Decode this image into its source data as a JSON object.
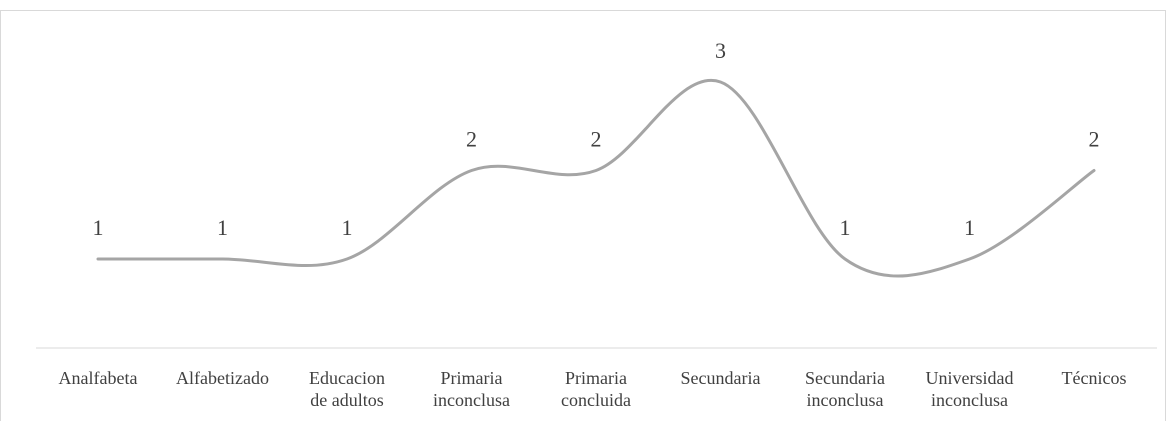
{
  "chart_data": {
    "type": "line",
    "smooth": true,
    "categories": [
      [
        "Analfabeta"
      ],
      [
        "Alfabetizado"
      ],
      [
        "Educacion",
        "de adultos"
      ],
      [
        "Primaria",
        "inconclusa"
      ],
      [
        "Primaria",
        "concluida"
      ],
      [
        "Secundaria"
      ],
      [
        "Secundaria",
        "inconclusa"
      ],
      [
        "Universidad",
        "inconclusa"
      ],
      [
        "Técnicos"
      ]
    ],
    "series": [
      {
        "values": [
          1,
          1,
          1,
          2,
          2,
          3,
          1,
          1,
          2
        ],
        "color": "#a5a5a5"
      }
    ],
    "data_labels": true,
    "ylim": [
      0,
      3
    ],
    "grid": false,
    "legend": "none"
  }
}
